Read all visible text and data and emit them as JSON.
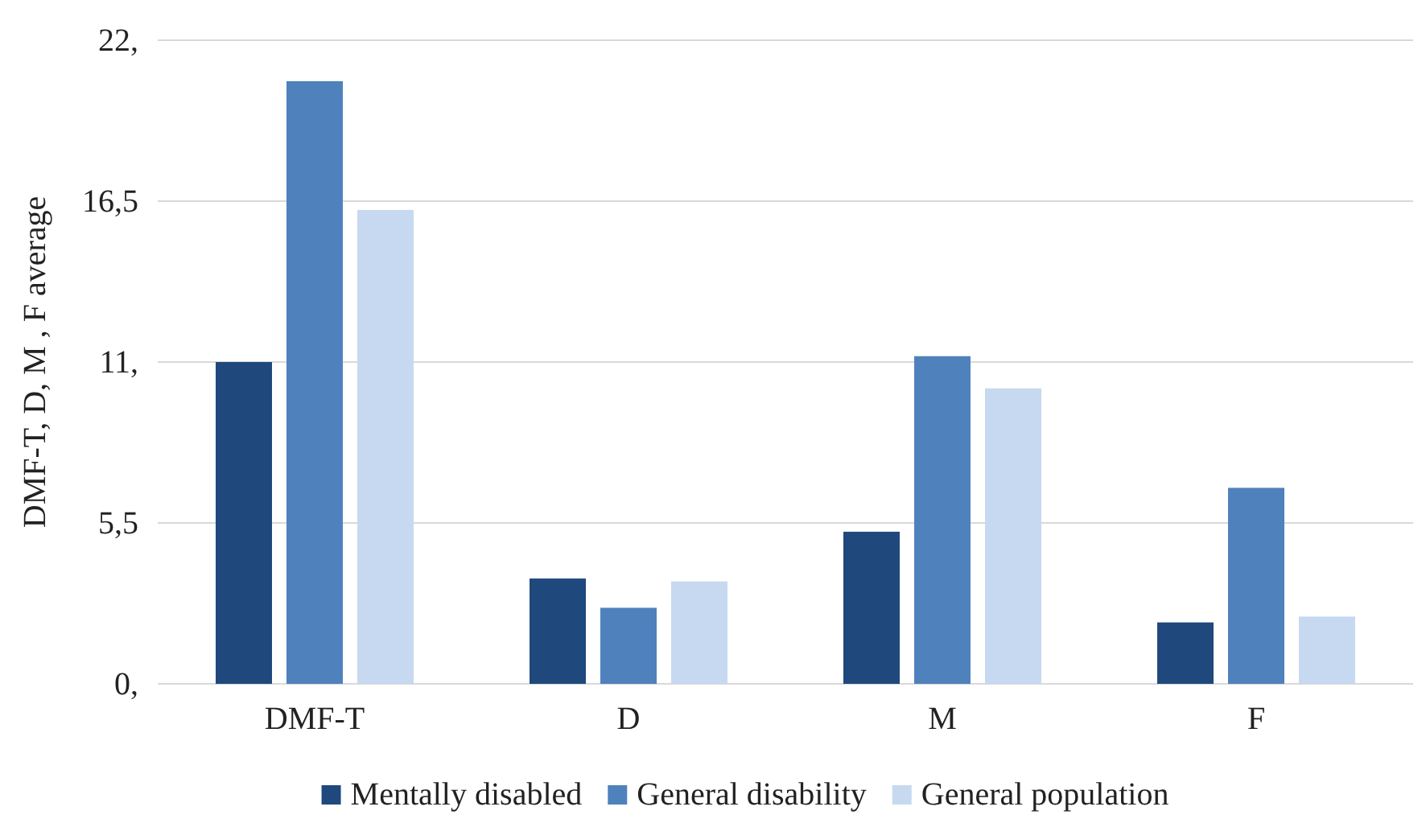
{
  "chart_data": {
    "type": "bar",
    "ylabel": "DMF-T, D, M , F average",
    "categories": [
      "DMF-T",
      "D",
      "M",
      "F"
    ],
    "series": [
      {
        "name": "Mentally disabled",
        "color": "#1f497d",
        "values": [
          11.0,
          3.6,
          5.2,
          2.1
        ]
      },
      {
        "name": "General disability",
        "color": "#4f81bd",
        "values": [
          20.6,
          2.6,
          11.2,
          6.7
        ]
      },
      {
        "name": "General population",
        "color": "#c6d9f0",
        "values": [
          16.2,
          3.5,
          10.1,
          2.3
        ]
      }
    ],
    "ylim": [
      0,
      22
    ],
    "yticks": [
      {
        "value": 0,
        "label": "0,"
      },
      {
        "value": 5.5,
        "label": "5,5"
      },
      {
        "value": 11,
        "label": "11,"
      },
      {
        "value": 16.5,
        "label": "16,5"
      },
      {
        "value": 22,
        "label": "22,"
      }
    ],
    "grid": "y",
    "legend": "bottom"
  }
}
